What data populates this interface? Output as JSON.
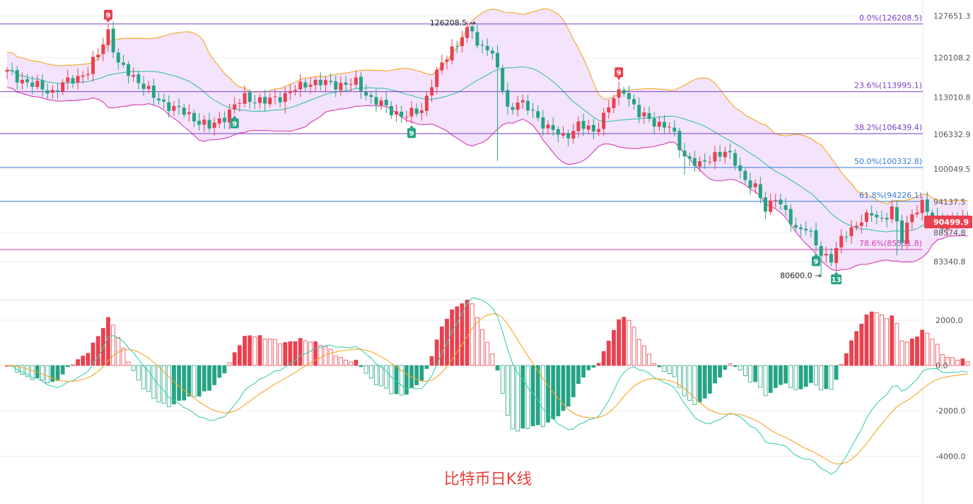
{
  "caption": "比特币日K线",
  "chart_data": [
    {
      "type": "candlestick",
      "panel": "price",
      "y_axis_ticks": [
        "127651.3",
        "120108.2",
        "113010.8",
        "106332.9",
        "100049.5",
        "94137.5",
        "88574.8",
        "83340.8"
      ],
      "ylim": [
        77000,
        129500
      ],
      "current_price": "90499.9",
      "annotations": {
        "high": "126208.5",
        "low": "80600.0"
      },
      "fib_levels": [
        {
          "value": 126208.5,
          "label": "0.0%(126208.5)",
          "color": "#7b3fc4"
        },
        {
          "value": 113995.1,
          "label": "23.6%(113995.1)",
          "color": "#7b3fc4"
        },
        {
          "value": 106439.4,
          "label": "38.2%(106439.4)",
          "color": "#7b3fc4"
        },
        {
          "value": 100332.8,
          "label": "50.0%(100332.8)",
          "color": "#3a7bd5"
        },
        {
          "value": 94226.1,
          "label": "61.8%(94226.1)",
          "color": "#3a7bd5"
        },
        {
          "value": 85531.8,
          "label": "78.6%(85531.8)",
          "color": "#d63bb6"
        }
      ],
      "td_markers": [
        {
          "index": 20,
          "text": "9",
          "kind": "sell"
        },
        {
          "index": 45,
          "text": "9",
          "kind": "buy"
        },
        {
          "index": 80,
          "text": "9",
          "kind": "buy"
        },
        {
          "index": 121,
          "text": "9",
          "kind": "sell"
        },
        {
          "index": 160,
          "text": "9",
          "kind": "buy"
        },
        {
          "index": 164,
          "text": "13",
          "kind": "buy"
        }
      ],
      "colors": {
        "up": "#e8414f",
        "down": "#26a385",
        "band_upper": "#f5a623",
        "band_lower": "#d63bb6",
        "band_mid": "#3bbfb0",
        "band_fill": "#f3e3fb",
        "price_tag": "#e8414f"
      }
    },
    {
      "type": "macd",
      "panel": "indicator",
      "y_axis_ticks": [
        "2000.0",
        "0.0",
        "-2000.0",
        "-4000.0"
      ],
      "ylim": [
        -5950,
        2650
      ],
      "colors": {
        "pos": "#e8414f",
        "neg": "#26a385",
        "dif": "#3bcfb0",
        "dea": "#f5a623"
      }
    }
  ]
}
